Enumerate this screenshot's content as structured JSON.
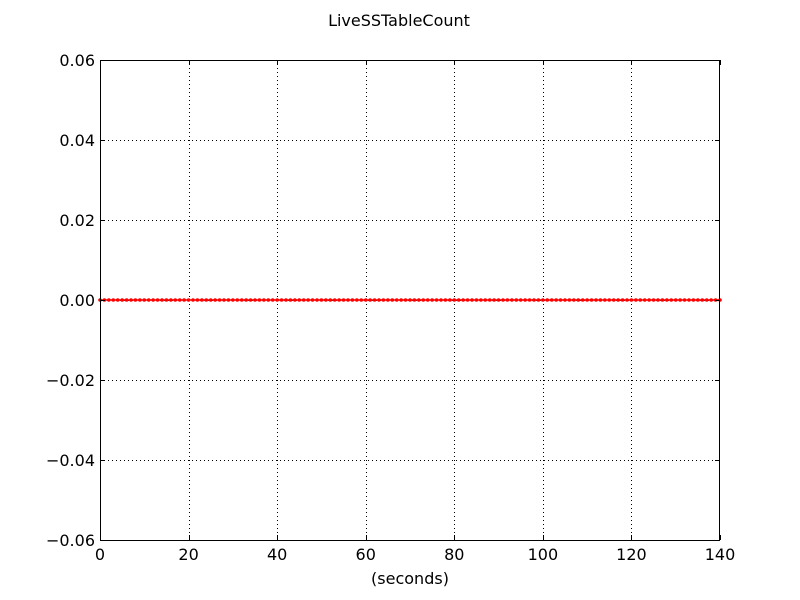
{
  "chart_data": {
    "type": "line",
    "title": "LiveSSTableCount",
    "xlabel": "(seconds)",
    "ylabel": "",
    "xlim": [
      0,
      140
    ],
    "ylim": [
      -0.06,
      0.06
    ],
    "xticks": [
      0,
      20,
      40,
      60,
      80,
      100,
      120,
      140
    ],
    "xtick_labels": [
      "0",
      "20",
      "40",
      "60",
      "80",
      "100",
      "120",
      "140"
    ],
    "yticks": [
      -0.06,
      -0.04,
      -0.02,
      0.0,
      0.02,
      0.04,
      0.06
    ],
    "ytick_labels": [
      "−0.06",
      "−0.04",
      "−0.02",
      "0.00",
      "0.02",
      "0.04",
      "0.06"
    ],
    "grid": true,
    "series": [
      {
        "color": "#ff0000",
        "marker": "dot",
        "x_start": 0,
        "x_end": 140,
        "x_step": 1,
        "y_value": 0
      }
    ]
  }
}
